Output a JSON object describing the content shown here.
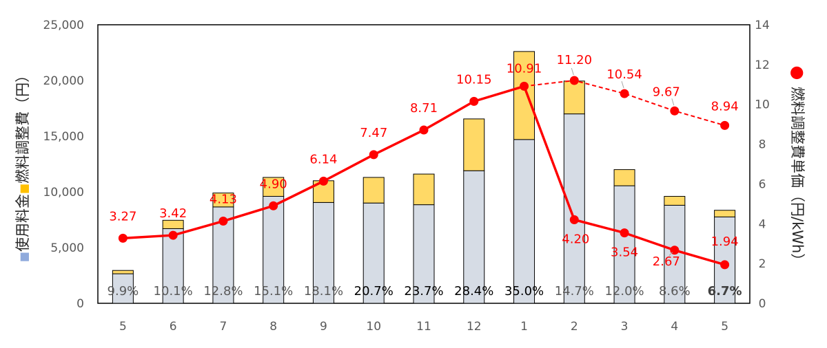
{
  "chart_data": {
    "type": "bar",
    "stacked": true,
    "categories": [
      "5",
      "6",
      "7",
      "8",
      "9",
      "10",
      "11",
      "12",
      "1",
      "2",
      "3",
      "4",
      "5"
    ],
    "series": [
      {
        "name": "使用料金",
        "type": "bar",
        "axis": "left",
        "color": "#d6dce5",
        "values": [
          2650,
          6700,
          8650,
          9600,
          9050,
          9000,
          8850,
          11900,
          14700,
          17000,
          10550,
          8800,
          7750
        ]
      },
      {
        "name": "燃料調整費（円）",
        "type": "bar",
        "axis": "left",
        "color": "#ffd966",
        "values": [
          300,
          750,
          1250,
          1700,
          1950,
          2300,
          2750,
          4650,
          7900,
          2950,
          1450,
          800,
          600
        ]
      },
      {
        "name": "燃料調整費単価（円/kWh）",
        "type": "line",
        "axis": "right",
        "color": "#ff0000",
        "values": [
          3.27,
          3.42,
          4.13,
          4.9,
          6.14,
          7.47,
          8.71,
          10.15,
          10.91,
          11.2,
          10.54,
          9.67,
          8.94
        ]
      },
      {
        "name": "燃料調整費単価（円/kWh）",
        "type": "line",
        "axis": "right",
        "color": "#ff0000",
        "values": [
          null,
          null,
          null,
          null,
          null,
          null,
          null,
          null,
          10.91,
          4.2,
          3.54,
          2.67,
          1.94
        ]
      }
    ],
    "price_labels_upper": [
      "3.27",
      "3.42",
      "4.13",
      "4.90",
      "6.14",
      "7.47",
      "8.71",
      "10.15",
      "10.91",
      "11.20",
      "10.54",
      "9.67",
      "8.94"
    ],
    "price_labels_lower": [
      "4.20",
      "3.54",
      "2.67",
      "1.94"
    ],
    "percent_labels": [
      "9.9%",
      "10.1%",
      "12.8%",
      "15.1%",
      "18.1%",
      "20.7%",
      "23.7%",
      "28.4%",
      "35.0%",
      "14.7%",
      "12.0%",
      "8.6%",
      "6.7%"
    ],
    "left_axis": {
      "ylim": [
        0,
        25000
      ],
      "ticks": [
        "0",
        "5,000",
        "10,000",
        "15,000",
        "20,000",
        "25,000"
      ],
      "title_parts": [
        "■",
        "使用料金",
        "■",
        "燃料調整費（円）"
      ]
    },
    "right_axis": {
      "ylim": [
        0,
        14
      ],
      "ticks": [
        "0",
        "2",
        "4",
        "6",
        "8",
        "10",
        "12",
        "14"
      ],
      "title": "燃料調整費単価（円/kWh）",
      "title_marker": "●"
    },
    "colors": {
      "bar_base": "#d6dce5",
      "bar_fuel": "#ffd966",
      "line": "#ff0000",
      "legend_blue": "#8faadc",
      "legend_yellow": "#ffc000",
      "dashed_segment": "#ff0000"
    },
    "grid": false
  }
}
